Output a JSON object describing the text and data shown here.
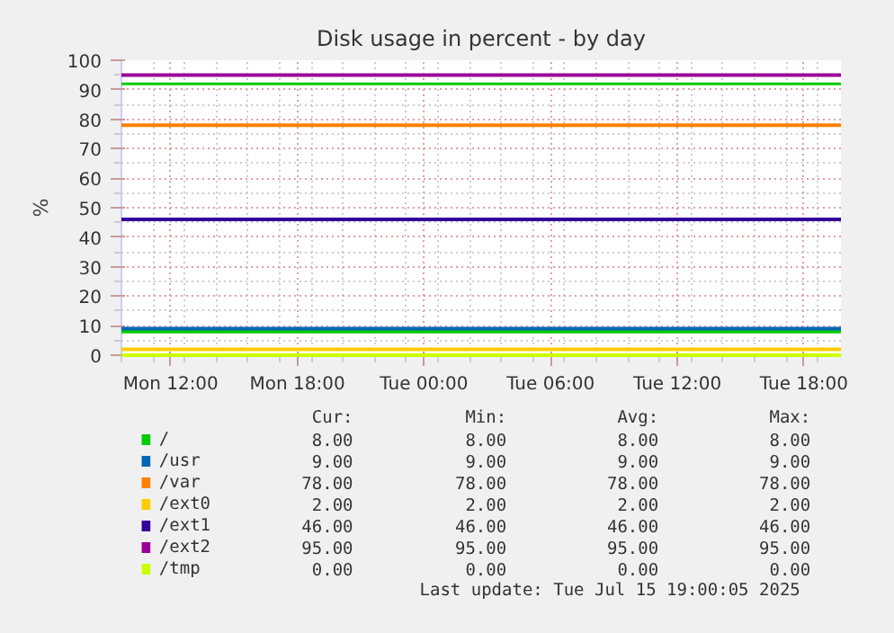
{
  "chart_data": {
    "type": "line",
    "title": "Disk usage in percent - by day",
    "ylabel": "%",
    "x": [
      "2025-07-14T09:40",
      "2025-07-15T19:45"
    ],
    "xlim": [
      "2025-07-14T09:40",
      "2025-07-15T19:45"
    ],
    "xticks": [
      {
        "value": "2025-07-14T12:00",
        "label": "Mon 12:00"
      },
      {
        "value": "2025-07-14T18:00",
        "label": "Mon 18:00"
      },
      {
        "value": "2025-07-15T00:00",
        "label": "Tue 00:00"
      },
      {
        "value": "2025-07-15T06:00",
        "label": "Tue 06:00"
      },
      {
        "value": "2025-07-15T12:00",
        "label": "Tue 12:00"
      },
      {
        "value": "2025-07-15T18:00",
        "label": "Tue 18:00"
      }
    ],
    "ylim": [
      0,
      100
    ],
    "yticks": [
      0,
      10,
      20,
      30,
      40,
      50,
      60,
      70,
      80,
      90,
      100
    ],
    "series": [
      {
        "name": "/",
        "color": "#00cc00",
        "values": [
          8,
          8
        ]
      },
      {
        "name": "/usr",
        "color": "#0066b3",
        "values": [
          9,
          9
        ]
      },
      {
        "name": "/var",
        "color": "#ff8000",
        "values": [
          78,
          78
        ]
      },
      {
        "name": "/ext0",
        "color": "#ffcc00",
        "values": [
          2,
          2
        ]
      },
      {
        "name": "/ext1",
        "color": "#330099",
        "values": [
          46,
          46
        ]
      },
      {
        "name": "/ext2",
        "color": "#990099",
        "values": [
          95,
          95
        ]
      },
      {
        "name": "/tmp",
        "color": "#ccff00",
        "values": [
          0,
          0
        ]
      }
    ],
    "ref_lines": [
      {
        "axis": "y",
        "value": 92,
        "color": "#00cc00"
      }
    ],
    "grid": true,
    "legend": "bottom",
    "annotations": [
      "Cur:",
      "Min:",
      "Avg:",
      "Max:",
      "8.00",
      "8.00",
      "8.00",
      "8.00",
      "9.00",
      "9.00",
      "9.00",
      "9.00",
      "78.00",
      "78.00",
      "78.00",
      "78.00",
      "2.00",
      "2.00",
      "2.00",
      "2.00",
      "46.00",
      "46.00",
      "46.00",
      "46.00",
      "95.00",
      "95.00",
      "95.00",
      "95.00",
      "0.00",
      "0.00",
      "0.00",
      "0.00",
      "Last update:  Tue Jul 15 19:00:05 2025"
    ]
  }
}
